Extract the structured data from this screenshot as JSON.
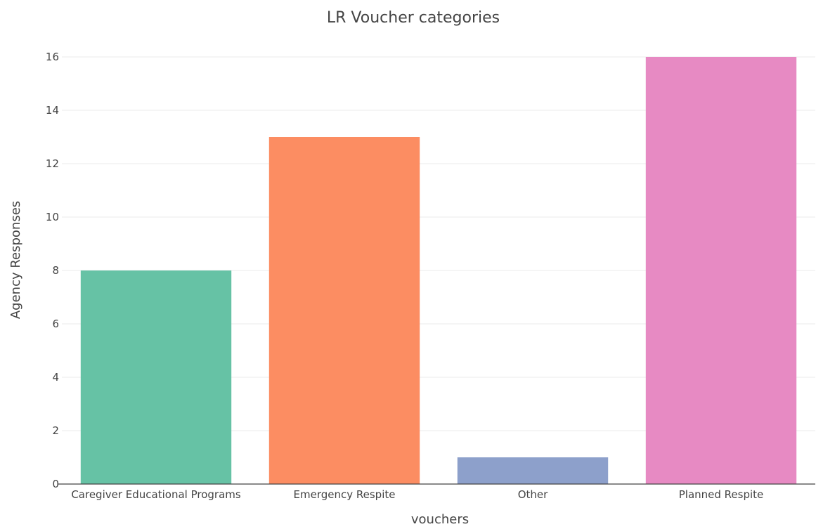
{
  "chart_data": {
    "type": "bar",
    "title": "LR Voucher categories",
    "xlabel": "vouchers",
    "ylabel": "Agency Responses",
    "categories": [
      "Caregiver Educational Programs",
      "Emergency Respite",
      "Other",
      "Planned Respite"
    ],
    "values": [
      8,
      13,
      1,
      16
    ],
    "colors": [
      "#66c2a5",
      "#fc8d62",
      "#8da0cb",
      "#e78ac3"
    ],
    "ylim": [
      0,
      16
    ],
    "yticks": [
      0,
      2,
      4,
      6,
      8,
      10,
      12,
      14,
      16
    ],
    "grid": true,
    "legend": "none"
  }
}
